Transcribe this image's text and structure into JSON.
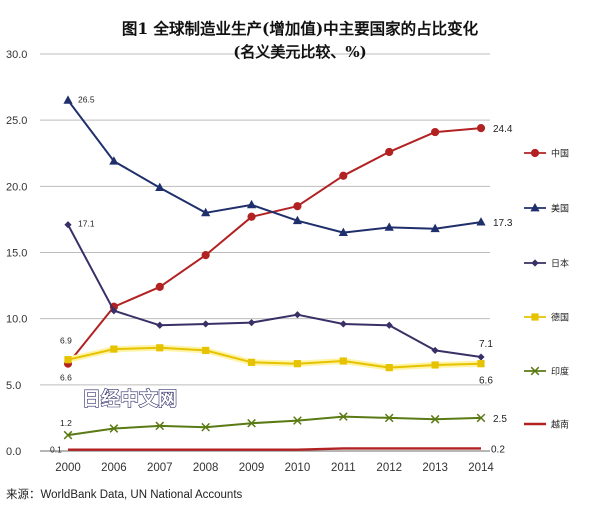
{
  "chart_data": {
    "type": "line",
    "title": "图1 全球制造业生产(增加值)中主要国家的占比变化",
    "subtitle": "(名义美元比较、%)",
    "xlabel": "",
    "ylabel": "",
    "x": [
      "2000",
      "2006",
      "2007",
      "2008",
      "2009",
      "2010",
      "2011",
      "2012",
      "2013",
      "2014"
    ],
    "ylim": [
      0,
      30
    ],
    "yticks": [
      "0.0",
      "5.0",
      "10.0",
      "15.0",
      "20.0",
      "25.0",
      "30.0"
    ],
    "grid": true,
    "legend_position": "right",
    "series": [
      {
        "name": "中国",
        "color": "#b22222",
        "marker": "circle",
        "values": [
          6.6,
          10.9,
          12.4,
          14.8,
          17.7,
          18.5,
          20.8,
          22.6,
          24.1,
          24.4
        ]
      },
      {
        "name": "美国",
        "color": "#1f2f6b",
        "marker": "triangle",
        "values": [
          26.5,
          21.9,
          19.9,
          18.0,
          18.6,
          17.4,
          16.5,
          16.9,
          16.8,
          17.3
        ]
      },
      {
        "name": "日本",
        "color": "#3a2f66",
        "marker": "diamond",
        "values": [
          17.1,
          10.6,
          9.5,
          9.6,
          9.7,
          10.3,
          9.6,
          9.5,
          7.6,
          7.1
        ]
      },
      {
        "name": "德国",
        "color": "#e6c200",
        "marker": "square",
        "values": [
          6.9,
          7.7,
          7.8,
          7.6,
          6.7,
          6.6,
          6.8,
          6.3,
          6.5,
          6.6
        ]
      },
      {
        "name": "印度",
        "color": "#5a7a14",
        "marker": "x",
        "values": [
          1.2,
          1.7,
          1.9,
          1.8,
          2.1,
          2.3,
          2.6,
          2.5,
          2.4,
          2.5
        ]
      },
      {
        "name": "越南",
        "color": "#b22222",
        "marker": "line",
        "values": [
          0.1,
          0.1,
          0.1,
          0.1,
          0.1,
          0.1,
          0.2,
          0.2,
          0.2,
          0.2
        ]
      }
    ],
    "annotations": [
      {
        "series": 0,
        "index": 0,
        "text": "6.6"
      },
      {
        "series": 0,
        "index": 9,
        "text": "24.4"
      },
      {
        "series": 1,
        "index": 0,
        "text": "26.5"
      },
      {
        "series": 1,
        "index": 9,
        "text": "17.3"
      },
      {
        "series": 2,
        "index": 0,
        "text": "17.1"
      },
      {
        "series": 2,
        "index": 9,
        "text": "7.1"
      },
      {
        "series": 3,
        "index": 0,
        "text": "6.9"
      },
      {
        "series": 3,
        "index": 9,
        "text": "6.6"
      },
      {
        "series": 4,
        "index": 0,
        "text": "1.2"
      },
      {
        "series": 4,
        "index": 9,
        "text": "2.5"
      },
      {
        "series": 5,
        "index": 0,
        "text": "0.1"
      },
      {
        "series": 5,
        "index": 9,
        "text": "0.2"
      }
    ],
    "watermark": "日经中文网",
    "source": "来源：WorldBank Data, UN National Accounts"
  }
}
